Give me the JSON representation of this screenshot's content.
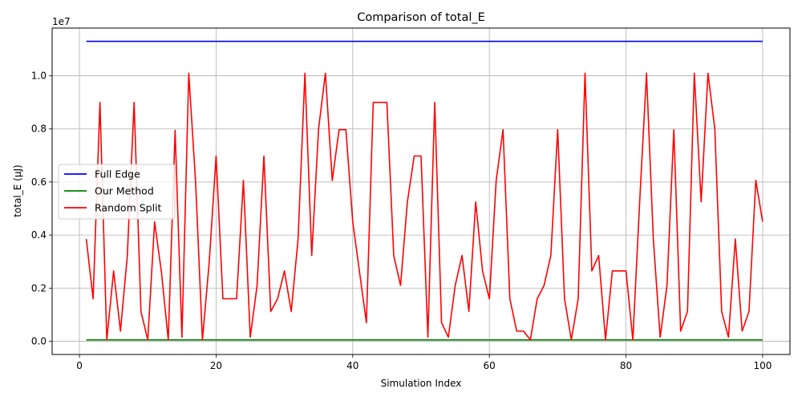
{
  "chart_data": {
    "type": "line",
    "title": "Comparison of total_E",
    "xlabel": "Simulation Index",
    "ylabel": "total_E (μJ)",
    "y_offset_label": "1e7",
    "xlim": [
      -4,
      104
    ],
    "ylim": [
      -500000,
      11800000
    ],
    "x_ticks": [
      0,
      20,
      40,
      60,
      80,
      100
    ],
    "x_tick_labels": [
      "0",
      "20",
      "40",
      "60",
      "80",
      "100"
    ],
    "y_ticks": [
      0,
      2000000,
      4000000,
      6000000,
      8000000,
      10000000
    ],
    "y_tick_labels": [
      "0.0",
      "0.2",
      "0.4",
      "0.6",
      "0.8",
      "1.0"
    ],
    "grid": true,
    "legend_position": "center-left",
    "x": [
      1,
      2,
      3,
      4,
      5,
      6,
      7,
      8,
      9,
      10,
      11,
      12,
      13,
      14,
      15,
      16,
      17,
      18,
      19,
      20,
      21,
      22,
      23,
      24,
      25,
      26,
      27,
      28,
      29,
      30,
      31,
      32,
      33,
      34,
      35,
      36,
      37,
      38,
      39,
      40,
      41,
      42,
      43,
      44,
      45,
      46,
      47,
      48,
      49,
      50,
      51,
      52,
      53,
      54,
      55,
      56,
      57,
      58,
      59,
      60,
      61,
      62,
      63,
      64,
      65,
      66,
      67,
      68,
      69,
      70,
      71,
      72,
      73,
      74,
      75,
      76,
      77,
      78,
      79,
      80,
      81,
      82,
      83,
      84,
      85,
      86,
      87,
      88,
      89,
      90,
      91,
      92,
      93,
      94,
      95,
      96,
      97,
      98,
      99,
      100
    ],
    "series": [
      {
        "name": "Full Edge",
        "color": "#0000ff",
        "values": [
          11300000,
          11300000,
          11300000,
          11300000,
          11300000,
          11300000,
          11300000,
          11300000,
          11300000,
          11300000,
          11300000,
          11300000,
          11300000,
          11300000,
          11300000,
          11300000,
          11300000,
          11300000,
          11300000,
          11300000,
          11300000,
          11300000,
          11300000,
          11300000,
          11300000,
          11300000,
          11300000,
          11300000,
          11300000,
          11300000,
          11300000,
          11300000,
          11300000,
          11300000,
          11300000,
          11300000,
          11300000,
          11300000,
          11300000,
          11300000,
          11300000,
          11300000,
          11300000,
          11300000,
          11300000,
          11300000,
          11300000,
          11300000,
          11300000,
          11300000,
          11300000,
          11300000,
          11300000,
          11300000,
          11300000,
          11300000,
          11300000,
          11300000,
          11300000,
          11300000,
          11300000,
          11300000,
          11300000,
          11300000,
          11300000,
          11300000,
          11300000,
          11300000,
          11300000,
          11300000,
          11300000,
          11300000,
          11300000,
          11300000,
          11300000,
          11300000,
          11300000,
          11300000,
          11300000,
          11300000,
          11300000,
          11300000,
          11300000,
          11300000,
          11300000,
          11300000,
          11300000,
          11300000,
          11300000,
          11300000,
          11300000,
          11300000,
          11300000,
          11300000,
          11300000,
          11300000,
          11300000,
          11300000,
          11300000,
          11300000
        ]
      },
      {
        "name": "Our Method",
        "color": "#008000",
        "values": [
          50000,
          50000,
          50000,
          50000,
          50000,
          50000,
          50000,
          50000,
          50000,
          50000,
          50000,
          50000,
          50000,
          50000,
          50000,
          50000,
          50000,
          50000,
          50000,
          50000,
          50000,
          50000,
          50000,
          50000,
          50000,
          50000,
          50000,
          50000,
          50000,
          50000,
          50000,
          50000,
          50000,
          50000,
          50000,
          50000,
          50000,
          50000,
          50000,
          50000,
          50000,
          50000,
          50000,
          50000,
          50000,
          50000,
          50000,
          50000,
          50000,
          50000,
          50000,
          50000,
          50000,
          50000,
          50000,
          50000,
          50000,
          50000,
          50000,
          50000,
          50000,
          50000,
          50000,
          50000,
          50000,
          50000,
          50000,
          50000,
          50000,
          50000,
          50000,
          50000,
          50000,
          50000,
          50000,
          50000,
          50000,
          50000,
          50000,
          50000,
          50000,
          50000,
          50000,
          50000,
          50000,
          50000,
          50000,
          50000,
          50000,
          50000,
          50000,
          50000,
          50000,
          50000,
          50000,
          50000,
          50000,
          50000,
          50000,
          50000
        ]
      },
      {
        "name": "Random Split",
        "color": "#ff0000",
        "values": [
          3850000,
          1600000,
          9000000,
          50000,
          2650000,
          380000,
          3200000,
          9000000,
          1120000,
          50000,
          4500000,
          2600000,
          50000,
          7950000,
          150000,
          10100000,
          6000000,
          50000,
          3000000,
          6980000,
          1600000,
          1600000,
          1600000,
          6060000,
          150000,
          2100000,
          6980000,
          1120000,
          1600000,
          2650000,
          1120000,
          3850000,
          10100000,
          3230000,
          8000000,
          10100000,
          6060000,
          7970000,
          7970000,
          4500000,
          2600000,
          700000,
          9000000,
          9000000,
          9000000,
          3230000,
          2100000,
          5250000,
          6980000,
          6980000,
          150000,
          9000000,
          700000,
          150000,
          2100000,
          3230000,
          1120000,
          5250000,
          2650000,
          1600000,
          6060000,
          7970000,
          1600000,
          380000,
          380000,
          50000,
          1600000,
          2100000,
          3230000,
          7970000,
          1600000,
          50000,
          1600000,
          10100000,
          2650000,
          3230000,
          50000,
          2650000,
          2650000,
          2650000,
          50000,
          5250000,
          10100000,
          3850000,
          150000,
          2100000,
          7970000,
          380000,
          1120000,
          10100000,
          5250000,
          10100000,
          8000000,
          1120000,
          150000,
          3850000,
          380000,
          1120000,
          6060000,
          4500000
        ]
      }
    ]
  }
}
